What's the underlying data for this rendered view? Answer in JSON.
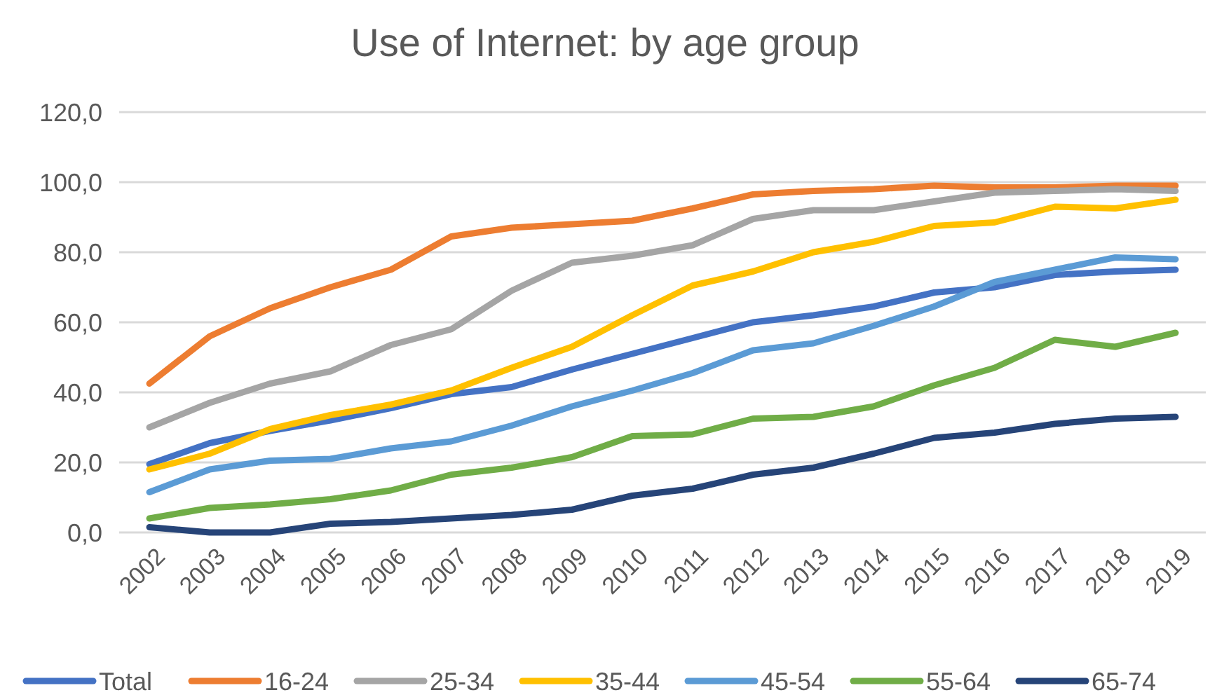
{
  "chart_data": {
    "type": "line",
    "title": "Use of Internet: by age group",
    "categories": [
      "2002",
      "2003",
      "2004",
      "2005",
      "2006",
      "2007",
      "2008",
      "2009",
      "2010",
      "2011",
      "2012",
      "2013",
      "2014",
      "2015",
      "2016",
      "2017",
      "2018",
      "2019"
    ],
    "series": [
      {
        "name": "Total",
        "color": "#4472c4",
        "values": [
          19.5,
          25.5,
          29,
          32,
          35.5,
          39.5,
          41.5,
          46.5,
          51,
          55.5,
          60,
          62,
          64.5,
          68.5,
          70,
          73.5,
          74.5,
          75
        ]
      },
      {
        "name": "16-24",
        "color": "#ed7d31",
        "values": [
          42.5,
          56,
          64,
          70,
          75,
          84.5,
          87,
          88,
          89,
          92.5,
          96.5,
          97.5,
          98,
          99,
          98.5,
          98.5,
          99,
          99
        ]
      },
      {
        "name": "25-34",
        "color": "#a5a5a5",
        "values": [
          30,
          37,
          42.5,
          46,
          53.5,
          58,
          69,
          77,
          79,
          82,
          89.5,
          92,
          92,
          94.5,
          97,
          97.5,
          98,
          97.5
        ]
      },
      {
        "name": "35-44",
        "color": "#ffc000",
        "values": [
          18,
          22.5,
          29.5,
          33.5,
          36.5,
          40.5,
          47,
          53,
          62,
          70.5,
          74.5,
          80,
          83,
          87.5,
          88.5,
          93,
          92.5,
          95
        ]
      },
      {
        "name": "45-54",
        "color": "#5b9bd5",
        "values": [
          11.5,
          18,
          20.5,
          21,
          24,
          26,
          30.5,
          36,
          40.5,
          45.5,
          52,
          54,
          59,
          64.5,
          71.5,
          75,
          78.5,
          78
        ]
      },
      {
        "name": "55-64",
        "color": "#70ad47",
        "values": [
          4,
          7,
          8,
          9.5,
          12,
          16.5,
          18.5,
          21.5,
          27.5,
          28,
          32.5,
          33,
          36,
          42,
          47,
          55,
          53,
          57
        ]
      },
      {
        "name": "65-74",
        "color": "#264478",
        "values": [
          1.5,
          0,
          0,
          2.5,
          3,
          4,
          5,
          6.5,
          10.5,
          12.5,
          16.5,
          18.5,
          22.5,
          27,
          28.5,
          31,
          32.5,
          33
        ]
      }
    ],
    "ylim": [
      0,
      120
    ],
    "yticks": [
      {
        "value": 0,
        "label": "0,0"
      },
      {
        "value": 20,
        "label": "20,0"
      },
      {
        "value": 40,
        "label": "40,0"
      },
      {
        "value": 60,
        "label": "60,0"
      },
      {
        "value": 80,
        "label": "80,0"
      },
      {
        "value": 100,
        "label": "100,0"
      },
      {
        "value": 120,
        "label": "120,0"
      }
    ],
    "grid": "y",
    "legend": "bottom",
    "marker": "none",
    "line_style": "solid"
  }
}
